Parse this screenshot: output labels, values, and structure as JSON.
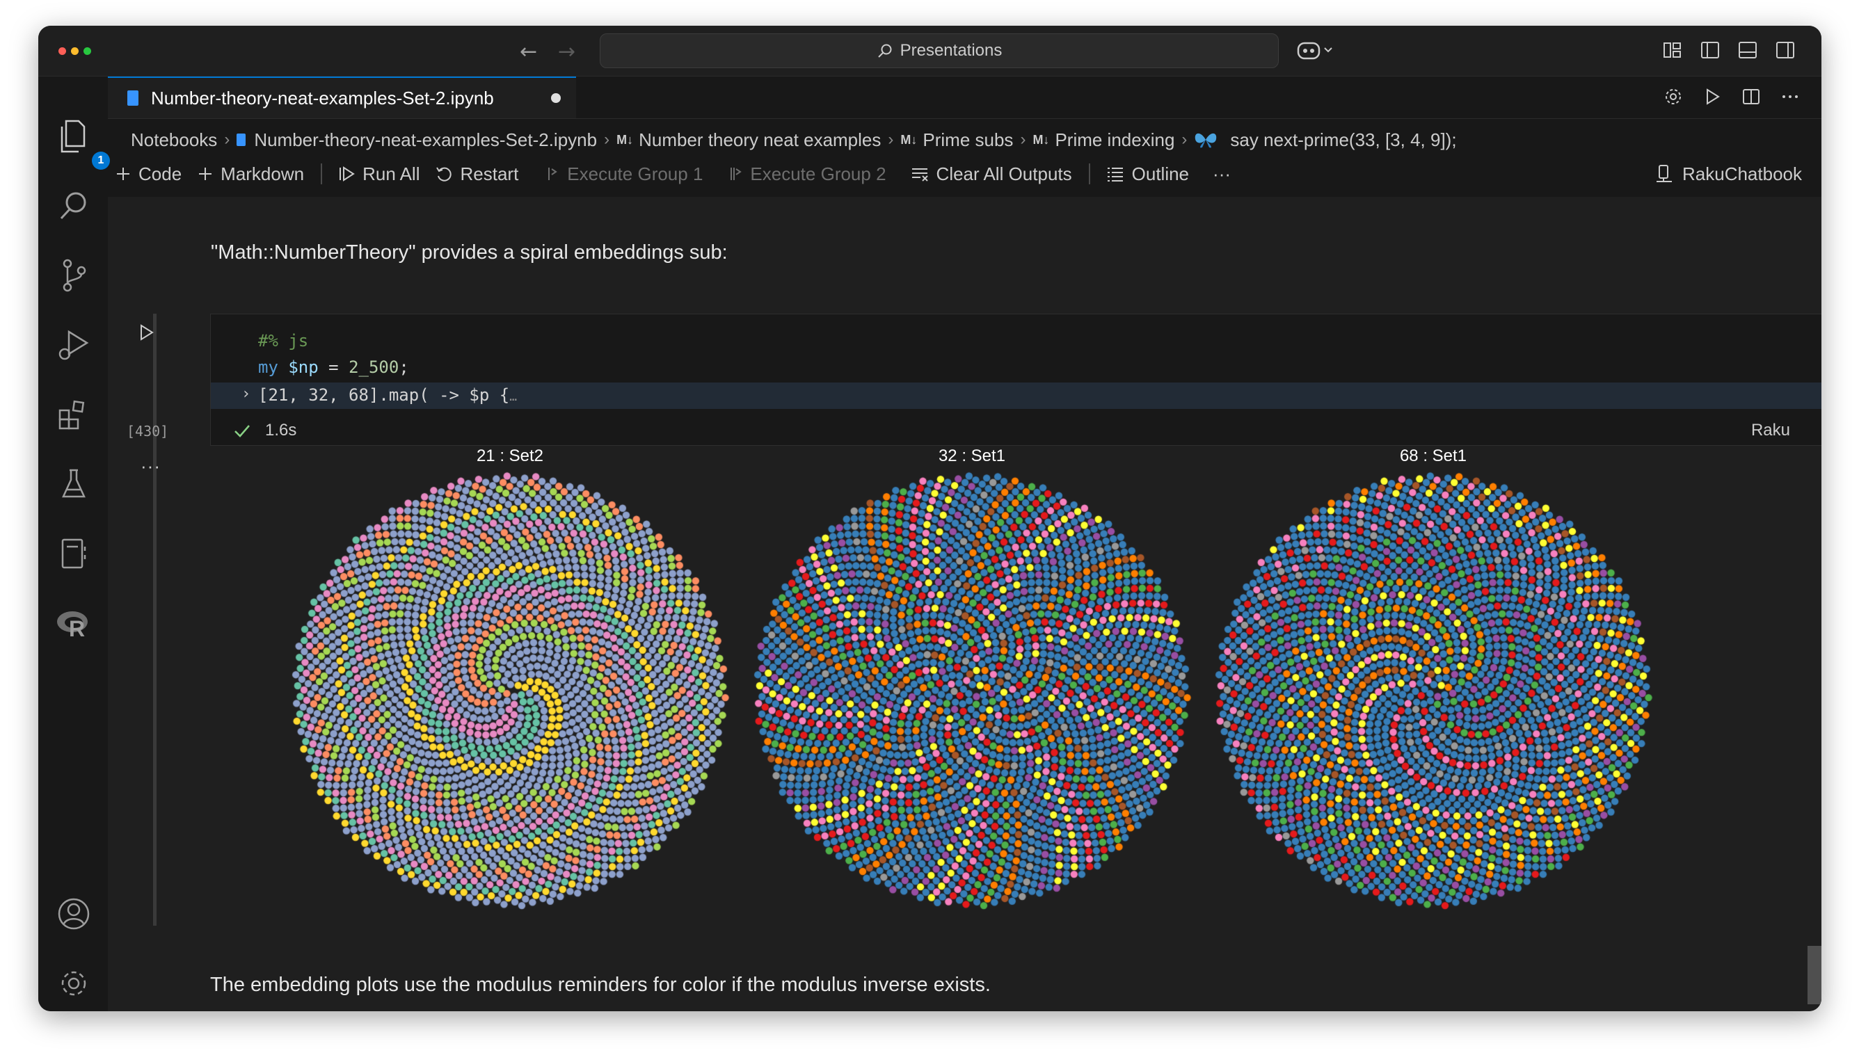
{
  "window": {
    "search_text": "Presentations"
  },
  "tab": {
    "filename": "Number-theory-neat-examples-Set-2.ipynb"
  },
  "activity": {
    "badge_count": "1"
  },
  "breadcrumb": {
    "items": [
      "Notebooks",
      "Number-theory-neat-examples-Set-2.ipynb",
      "Number theory neat examples",
      "Prime subs",
      "Prime indexing",
      "say next-prime(33, [3, 4, 9]);"
    ],
    "md_glyph": "M↓"
  },
  "toolbar": {
    "code": "Code",
    "markdown": "Markdown",
    "run_all": "Run All",
    "restart": "Restart",
    "exec_group1": "Execute Group 1",
    "exec_group2": "Execute Group 2",
    "clear_outputs": "Clear All Outputs",
    "outline": "Outline",
    "more": "···",
    "kernel": "RakuChatbook"
  },
  "markdown": {
    "intro": "\"Math::NumberTheory\" provides a spiral embeddings sub:",
    "outro": "The embedding plots use the modulus reminders for color if the modulus inverse exists."
  },
  "cell": {
    "magic": "#% js",
    "kw_my": "my",
    "var_np": "$np",
    "eq": " = ",
    "num_np": "2_500",
    "semi": ";",
    "line3": "[21, 32, 68].map( -> $p {",
    "fold": "…",
    "exec_count": "[430]",
    "duration": "1.6s",
    "language": "Raku"
  },
  "output": {
    "more": "···",
    "plots": [
      {
        "title": "21 : Set2",
        "modulus": 21,
        "palette": "Set2",
        "colors": [
          "#66c2a5",
          "#fc8d62",
          "#8da0cb",
          "#e78ac3",
          "#a6d854",
          "#ffd92f",
          "#e5c494",
          "#b3b3b3"
        ]
      },
      {
        "title": "32 : Set1",
        "modulus": 32,
        "palette": "Set1",
        "colors": [
          "#e41a1c",
          "#377eb8",
          "#4daf4a",
          "#984ea3",
          "#ff7f00",
          "#ffff33",
          "#a65628",
          "#f781bf",
          "#999999"
        ]
      },
      {
        "title": "68 : Set1",
        "modulus": 68,
        "palette": "Set1",
        "colors": [
          "#e41a1c",
          "#377eb8",
          "#4daf4a",
          "#984ea3",
          "#ff7f00",
          "#ffff33",
          "#a65628",
          "#f781bf",
          "#999999"
        ]
      }
    ]
  },
  "colors": {
    "accent": "#0078d4",
    "window_bg": "#181818",
    "editor_bg": "#1f1f1f",
    "success": "#89d185"
  }
}
